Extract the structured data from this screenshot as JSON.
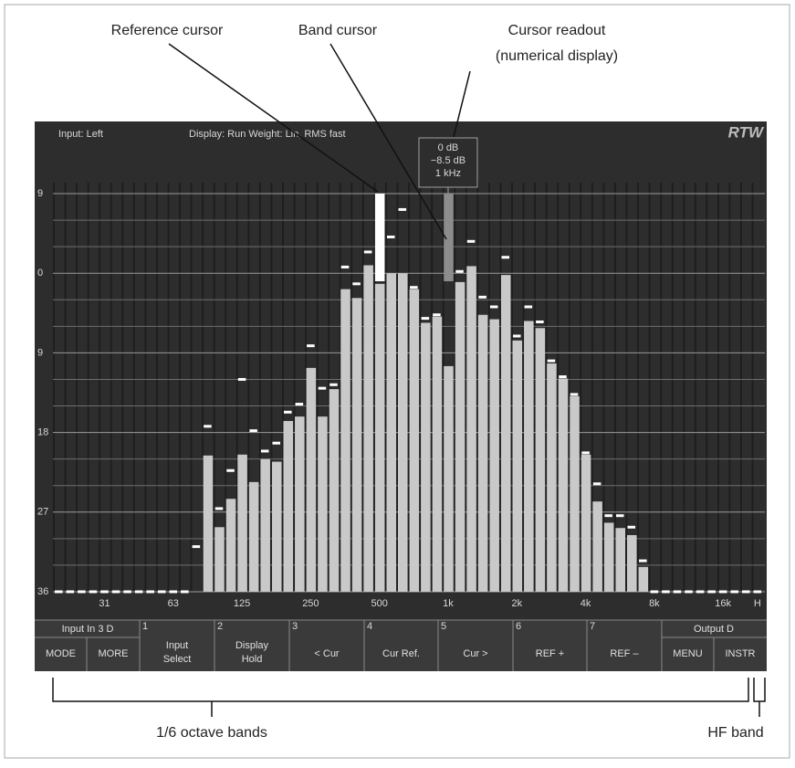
{
  "annotations": {
    "reference_cursor": "Reference cursor",
    "band_cursor": "Band cursor",
    "readout_1": "Cursor readout",
    "readout_2": "(numerical display)",
    "bands": "1/6 octave bands",
    "hf": "HF band"
  },
  "header": {
    "input": "Input: Left",
    "display": "Display: Run  Weight: Lin, RMS fast",
    "logo": "RTW"
  },
  "readout": [
    "0 dB",
    "−8.5 dB",
    "1 kHz"
  ],
  "softkeys": {
    "left_group": "Input In 3 D",
    "right_group": "Output D",
    "keys": [
      {
        "label": "MODE"
      },
      {
        "label": "MORE"
      },
      {
        "num": "1",
        "label": "Input\nSelect"
      },
      {
        "num": "2",
        "label": "Display\nHold"
      },
      {
        "num": "3",
        "label": "< Cur"
      },
      {
        "num": "4",
        "label": "Cur Ref."
      },
      {
        "num": "5",
        "label": "Cur >"
      },
      {
        "num": "6",
        "label": "REF +"
      },
      {
        "num": "7",
        "label": "REF –"
      },
      {
        "label": "MENU"
      },
      {
        "label": "INSTR"
      }
    ]
  },
  "chart_data": {
    "type": "bar",
    "categories": [
      null,
      null,
      null,
      null,
      "31",
      null,
      null,
      null,
      null,
      null,
      "63",
      null,
      null,
      null,
      null,
      null,
      "125",
      null,
      null,
      null,
      null,
      null,
      "250",
      null,
      null,
      null,
      null,
      null,
      "500",
      null,
      null,
      null,
      null,
      null,
      "1k",
      null,
      null,
      null,
      null,
      null,
      "2k",
      null,
      null,
      null,
      null,
      null,
      "4k",
      null,
      null,
      null,
      null,
      null,
      "8k",
      null,
      null,
      null,
      null,
      null,
      "16k",
      null,
      null,
      "H"
    ],
    "values": [
      null,
      null,
      null,
      null,
      null,
      null,
      null,
      null,
      null,
      null,
      null,
      null,
      null,
      -20.6,
      -28.7,
      -25.5,
      -20.5,
      -23.6,
      -21,
      -21.3,
      -16.7,
      -16.2,
      -10.7,
      -16.2,
      -13.1,
      -1.8,
      -2.8,
      0.9,
      -1.2,
      0,
      0,
      -1.8,
      -5.6,
      -4.9,
      -10.5,
      -1,
      0.8,
      -4.7,
      -5.2,
      -0.2,
      -7.6,
      -5.4,
      -6.2,
      -10.2,
      -11.9,
      -13.9,
      -20.5,
      -25.8,
      -28.2,
      -28.8,
      -29.6,
      -33.2,
      null,
      null,
      null,
      null,
      null,
      null,
      null,
      null,
      null,
      null
    ],
    "peaks": [
      -36,
      -36,
      -36,
      -36,
      -36,
      -36,
      -36,
      -36,
      -36,
      -36,
      -36,
      -36,
      -30.9,
      -17.3,
      -26.6,
      -22.3,
      -12,
      -17.8,
      -20.1,
      -19.2,
      -15.7,
      -14.8,
      -8.2,
      -13,
      -12.6,
      0.7,
      -1.2,
      2.4,
      null,
      4.1,
      7.2,
      -1.6,
      -5.1,
      -4.7,
      null,
      0.2,
      3.6,
      -2.7,
      -3.8,
      1.8,
      -7.1,
      -3.8,
      -5.5,
      -9.9,
      -11.7,
      -13.7,
      -20.3,
      -23.8,
      -27.4,
      -27.4,
      -28.7,
      -32.5,
      -36,
      -36,
      -36,
      -36,
      -36,
      -36,
      -36,
      -36,
      -36,
      -36
    ],
    "reference_cursor": {
      "category": "500",
      "value": 9
    },
    "band_cursor": {
      "category": "1k",
      "value": 9
    },
    "ylim": [
      -36,
      9
    ],
    "yticks": [
      9,
      0,
      {
        "value": -9,
        "label": "9"
      },
      {
        "value": -18,
        "label": "18"
      },
      {
        "value": -27,
        "label": "27"
      },
      {
        "value": -36,
        "label": "36"
      }
    ],
    "minor_gridlines": [
      6,
      3,
      -3,
      -6,
      -12,
      -15,
      -21,
      -24,
      -30,
      -33
    ],
    "color": "#c9c9c9",
    "peak_color": "#ffffff",
    "grid": true
  }
}
